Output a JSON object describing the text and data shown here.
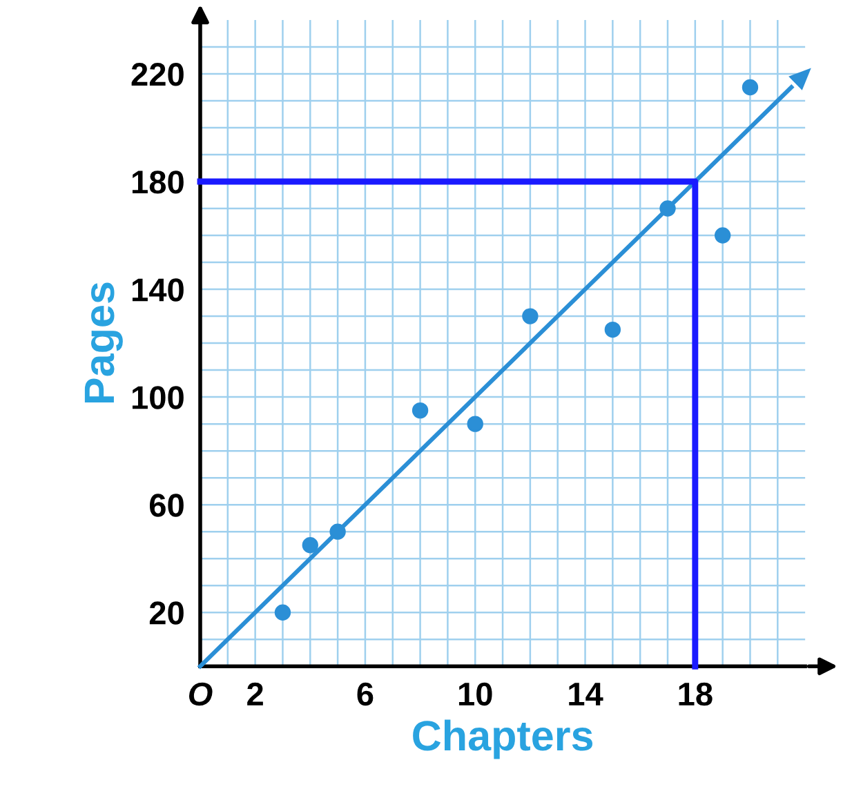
{
  "chart_data": {
    "type": "scatter",
    "xlabel": "Chapters",
    "ylabel": "Pages",
    "xlim": [
      0,
      22
    ],
    "ylim": [
      0,
      240
    ],
    "xticks": [
      {
        "value": 0,
        "label": "O"
      },
      {
        "value": 1,
        "label": null
      },
      2,
      {
        "value": 3,
        "label": null
      },
      {
        "value": 4,
        "label": null
      },
      {
        "value": 5,
        "label": null
      },
      6,
      {
        "value": 7,
        "label": null
      },
      {
        "value": 8,
        "label": null
      },
      {
        "value": 9,
        "label": null
      },
      10,
      {
        "value": 11,
        "label": null
      },
      {
        "value": 12,
        "label": null
      },
      {
        "value": 13,
        "label": null
      },
      14,
      {
        "value": 15,
        "label": null
      },
      {
        "value": 16,
        "label": null
      },
      {
        "value": 17,
        "label": null
      },
      18,
      {
        "value": 19,
        "label": null
      },
      {
        "value": 20,
        "label": null
      },
      {
        "value": 21,
        "label": null
      }
    ],
    "yticks": [
      {
        "value": 10,
        "label": null
      },
      20,
      {
        "value": 30,
        "label": null
      },
      {
        "value": 40,
        "label": null
      },
      {
        "value": 50,
        "label": null
      },
      60,
      {
        "value": 70,
        "label": null
      },
      {
        "value": 80,
        "label": null
      },
      {
        "value": 90,
        "label": null
      },
      100,
      {
        "value": 110,
        "label": null
      },
      {
        "value": 120,
        "label": null
      },
      {
        "value": 130,
        "label": null
      },
      140,
      {
        "value": 150,
        "label": null
      },
      {
        "value": 160,
        "label": null
      },
      {
        "value": 170,
        "label": null
      },
      180,
      {
        "value": 190,
        "label": null
      },
      {
        "value": 200,
        "label": null
      },
      {
        "value": 210,
        "label": null
      },
      220,
      {
        "value": 230,
        "label": null
      }
    ],
    "grid": true,
    "series": [
      {
        "marker": "circle",
        "color": "#2b8fd6",
        "x": [
          3,
          4,
          5,
          8,
          10,
          12,
          15,
          17,
          19,
          20
        ],
        "values": [
          20,
          45,
          50,
          95,
          90,
          130,
          125,
          170,
          160,
          215
        ]
      },
      {
        "type": "line",
        "color": "#2b8fd6",
        "x": [
          0,
          21.5
        ],
        "values": [
          0,
          215
        ]
      },
      {
        "type": "line",
        "color": "#1a1aff",
        "x": [
          0,
          18,
          18
        ],
        "values": [
          180,
          180,
          0
        ]
      }
    ]
  }
}
